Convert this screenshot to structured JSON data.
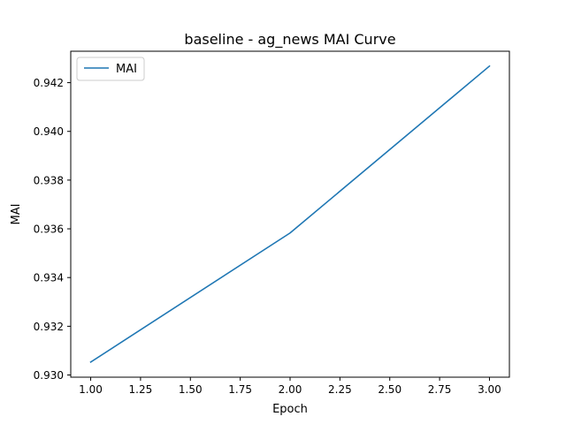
{
  "chart_data": {
    "type": "line",
    "title": "baseline - ag_news MAI Curve",
    "xlabel": "Epoch",
    "ylabel": "MAI",
    "xlim": [
      0.9,
      3.1
    ],
    "ylim": [
      0.92991,
      0.94329
    ],
    "x_ticks": [
      "1.00",
      "1.25",
      "1.50",
      "1.75",
      "2.00",
      "2.25",
      "2.50",
      "2.75",
      "3.00"
    ],
    "y_ticks": [
      "0.930",
      "0.932",
      "0.934",
      "0.936",
      "0.938",
      "0.940",
      "0.942"
    ],
    "grid": false,
    "legend_position": "top-left",
    "series": [
      {
        "name": "MAI",
        "color": "#1f77b4",
        "x": [
          1,
          2,
          3
        ],
        "y": [
          0.93053,
          0.93583,
          0.94268
        ]
      }
    ]
  }
}
